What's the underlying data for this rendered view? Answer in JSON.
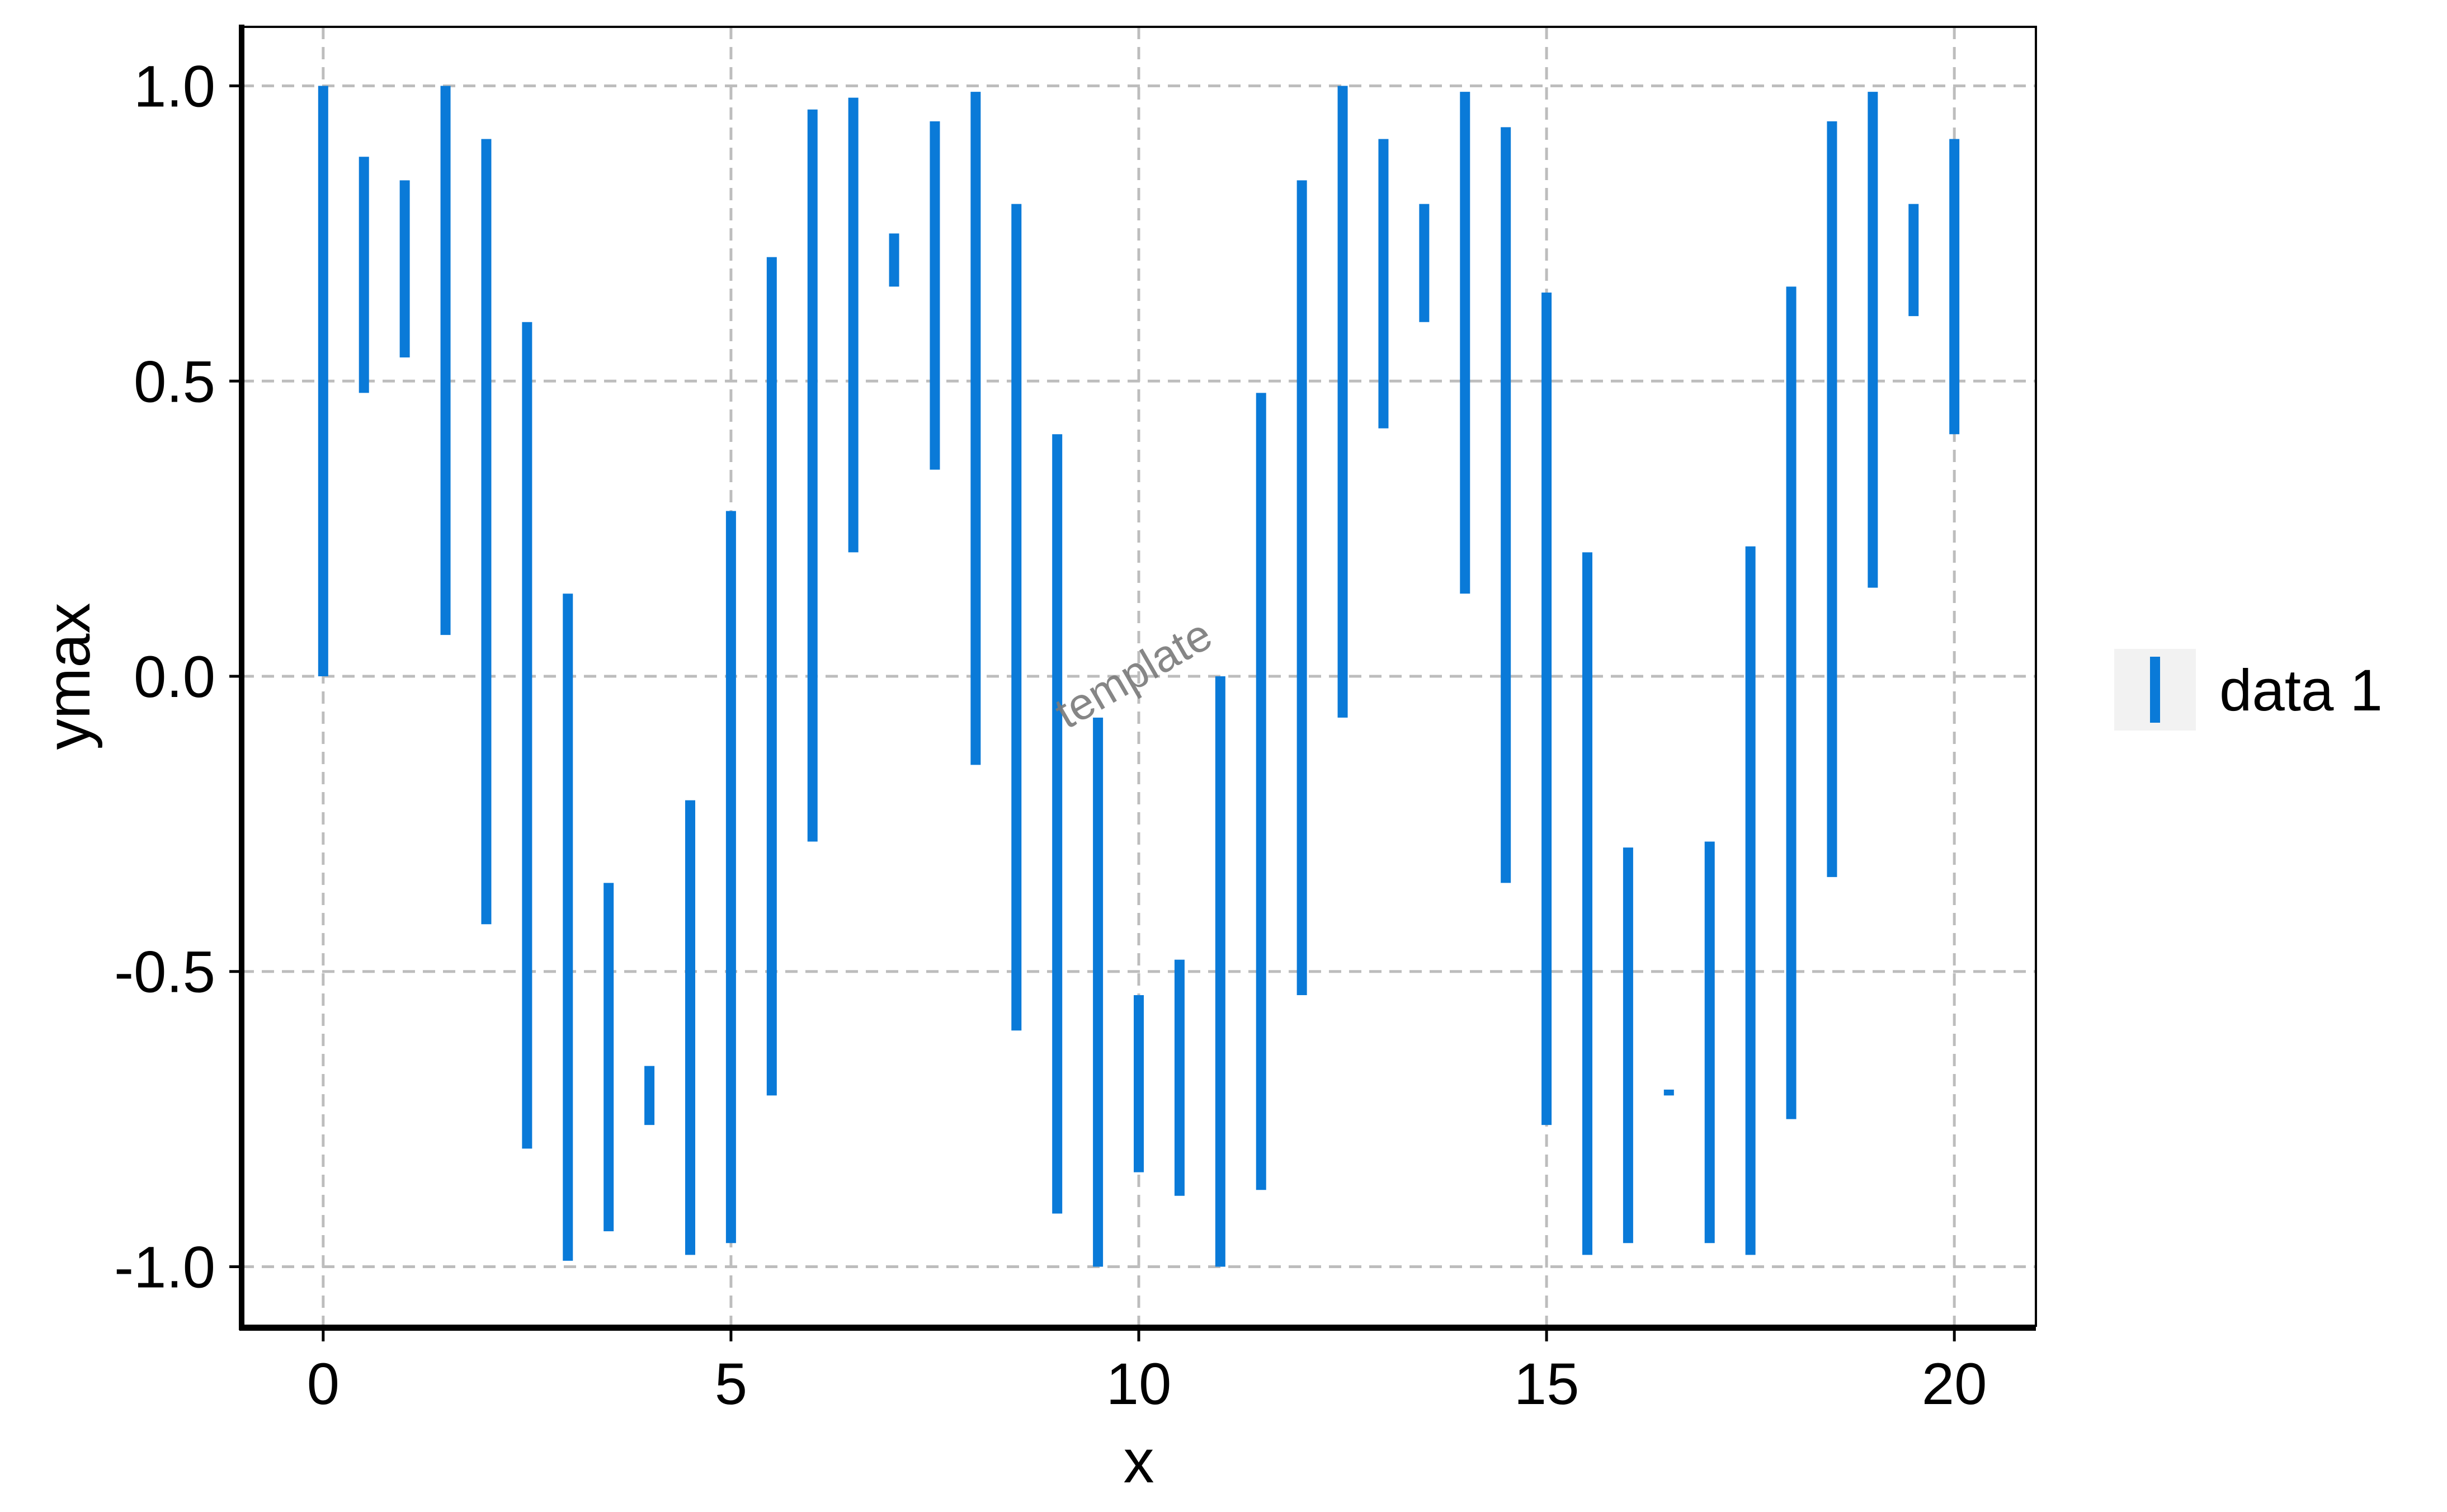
{
  "chart_data": {
    "type": "linerange",
    "title": "",
    "xlabel": "x",
    "ylabel": "ymax",
    "xlim": [
      -1,
      21
    ],
    "ylim": [
      -1.1,
      1.1
    ],
    "x_ticks": [
      0,
      5,
      10,
      15,
      20
    ],
    "x_tick_labels": [
      "0",
      "5",
      "10",
      "15",
      "20"
    ],
    "y_ticks": [
      -1.0,
      -0.5,
      0.0,
      0.5,
      1.0
    ],
    "y_tick_labels": [
      "-1.0",
      "-0.5",
      "0.0",
      "0.5",
      "1.0"
    ],
    "grid": true,
    "grid_style": "dashed",
    "legend_position": "right",
    "watermark": "template",
    "colors": {
      "series": "#0a7ad8",
      "grid": "#bdbdbd",
      "axis": "#000000",
      "legend_key_bg": "#f2f2f2",
      "watermark": "#7a7a7a"
    },
    "series": [
      {
        "name": "data 1",
        "x": [
          0,
          0.5,
          1,
          1.5,
          2,
          2.5,
          3,
          3.5,
          4,
          4.5,
          5,
          5.5,
          6,
          6.5,
          7,
          7.5,
          8,
          8.5,
          9,
          9.5,
          10,
          10.5,
          11,
          11.5,
          12,
          12.5,
          13,
          13.5,
          14,
          14.5,
          15,
          15.5,
          16,
          16.5,
          17,
          17.5,
          18,
          18.5,
          19,
          19.5,
          20
        ],
        "ymin": [
          0.0,
          0.48,
          0.54,
          0.07,
          -0.42,
          -0.8,
          -0.99,
          -0.94,
          -0.76,
          -0.98,
          -0.96,
          -0.71,
          -0.28,
          0.21,
          0.66,
          0.35,
          -0.15,
          -0.6,
          -0.91,
          -1.0,
          -0.84,
          -0.88,
          -1.0,
          -0.87,
          -0.54,
          -0.07,
          0.42,
          0.6,
          0.14,
          -0.35,
          -0.76,
          -0.98,
          -0.96,
          -0.71,
          -0.96,
          -0.98,
          -0.75,
          -0.34,
          0.15,
          0.61,
          0.41
        ],
        "ymax": [
          1.0,
          0.88,
          0.84,
          1.0,
          0.91,
          0.6,
          0.14,
          -0.35,
          -0.66,
          -0.21,
          0.28,
          0.71,
          0.96,
          0.98,
          0.75,
          0.94,
          0.99,
          0.8,
          0.41,
          -0.07,
          -0.54,
          -0.48,
          0.0,
          0.48,
          0.84,
          1.0,
          0.91,
          0.8,
          0.99,
          0.93,
          0.65,
          0.21,
          -0.29,
          -0.7,
          -0.28,
          0.22,
          0.66,
          0.94,
          0.99,
          0.8,
          0.91
        ]
      }
    ]
  }
}
